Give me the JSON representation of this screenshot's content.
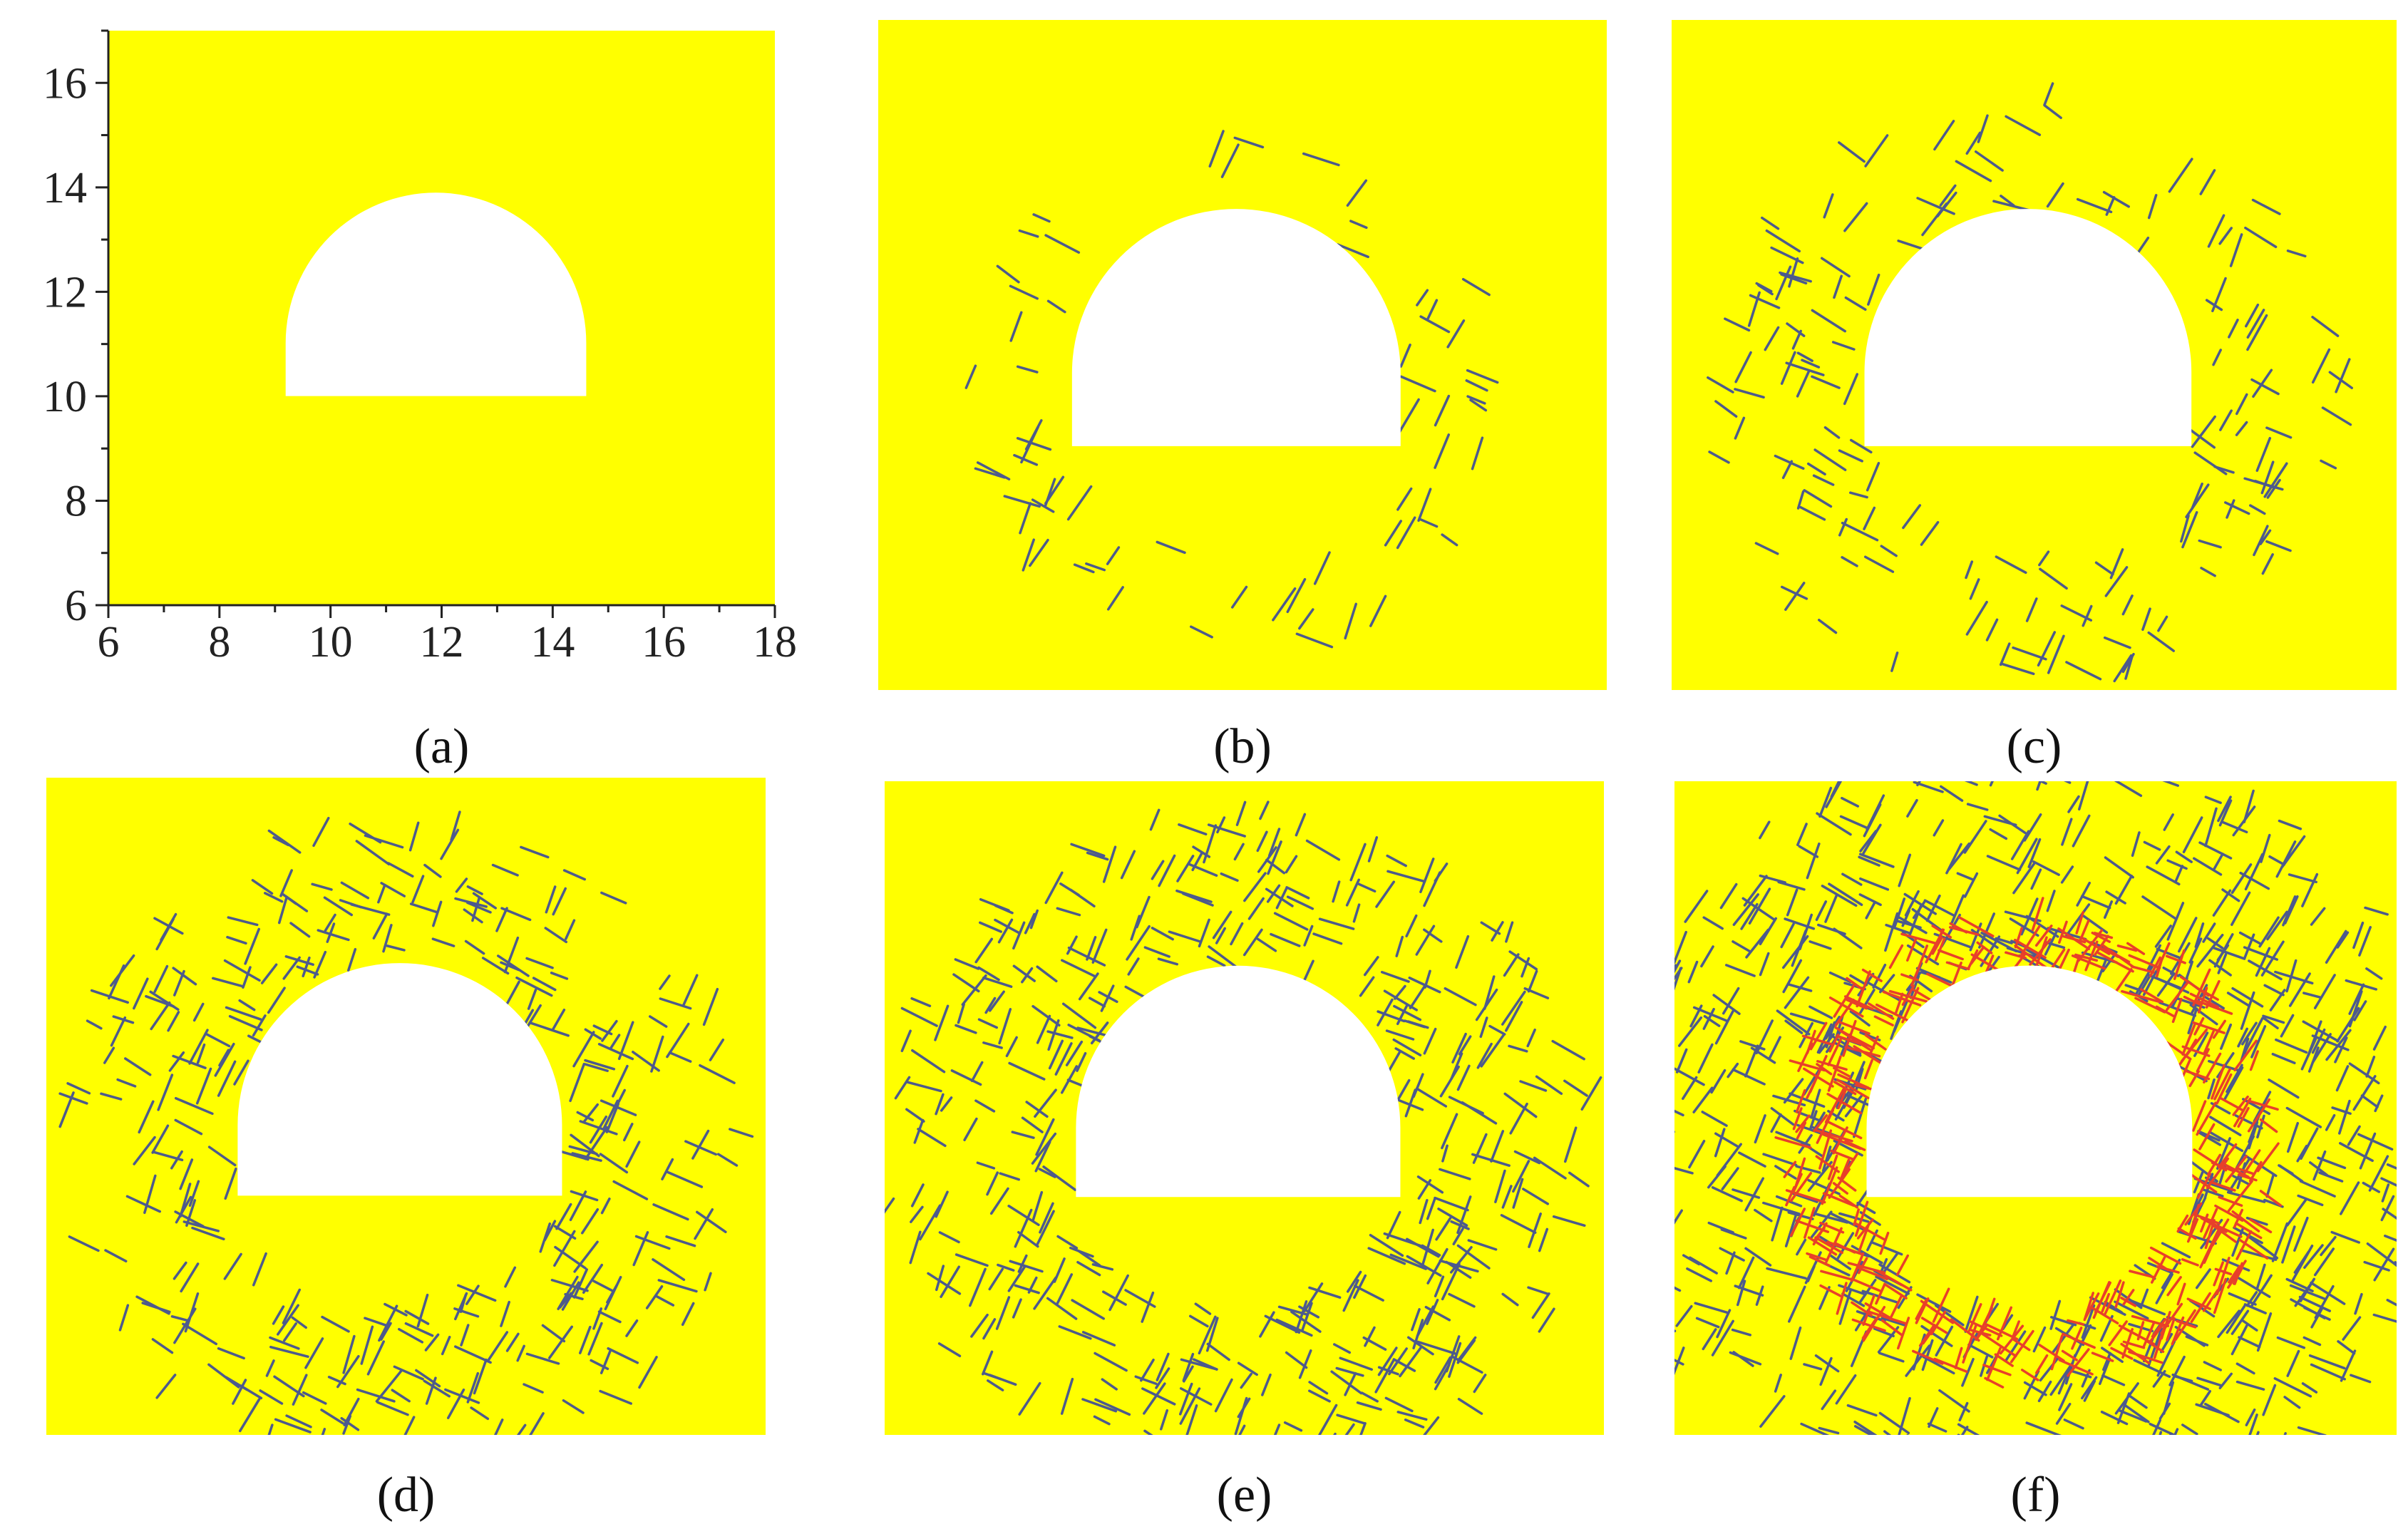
{
  "panels": [
    {
      "label": "(a)",
      "axes": {
        "xlim": [
          6,
          18
        ],
        "ylim": [
          6,
          17
        ],
        "xticks": [
          6,
          8,
          10,
          12,
          14,
          16,
          18
        ],
        "yticks": [
          6,
          8,
          10,
          12,
          14,
          16
        ],
        "xminor_ticks": [
          7,
          9,
          11,
          13,
          15,
          17
        ],
        "yminor_ticks": [
          7,
          9,
          11,
          13,
          15,
          17
        ]
      }
    },
    {
      "label": "(b)"
    },
    {
      "label": "(c)"
    },
    {
      "label": "(d)"
    },
    {
      "label": "(e)"
    },
    {
      "label": "(f)"
    }
  ]
}
